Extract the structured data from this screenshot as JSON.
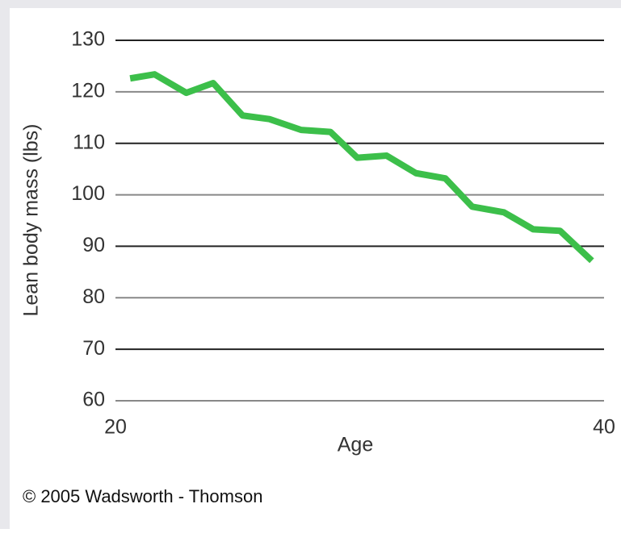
{
  "chart_data": {
    "type": "line",
    "y_label": "Lean body mass (lbs)",
    "x_label": "Age",
    "credit": "© 2005 Wadsworth - Thomson",
    "series": [
      {
        "name": "Lean body mass",
        "color": "#3cbf4a",
        "x": [
          20.6,
          21.6,
          22.9,
          24.0,
          25.2,
          26.3,
          27.6,
          28.8,
          29.9,
          31.1,
          32.3,
          33.5,
          34.6,
          35.9,
          37.1,
          38.2,
          39.5
        ],
        "values": [
          122.6,
          123.4,
          119.8,
          121.7,
          115.4,
          114.7,
          112.6,
          112.2,
          107.2,
          107.6,
          104.2,
          103.2,
          97.7,
          96.6,
          93.3,
          93.0,
          87.2
        ]
      }
    ],
    "xlim": [
      20,
      40
    ],
    "xticks": [
      20,
      40
    ],
    "ylim": [
      60,
      130
    ],
    "yticks": [
      60,
      70,
      80,
      90,
      100,
      110,
      120,
      130
    ],
    "grid": true
  }
}
